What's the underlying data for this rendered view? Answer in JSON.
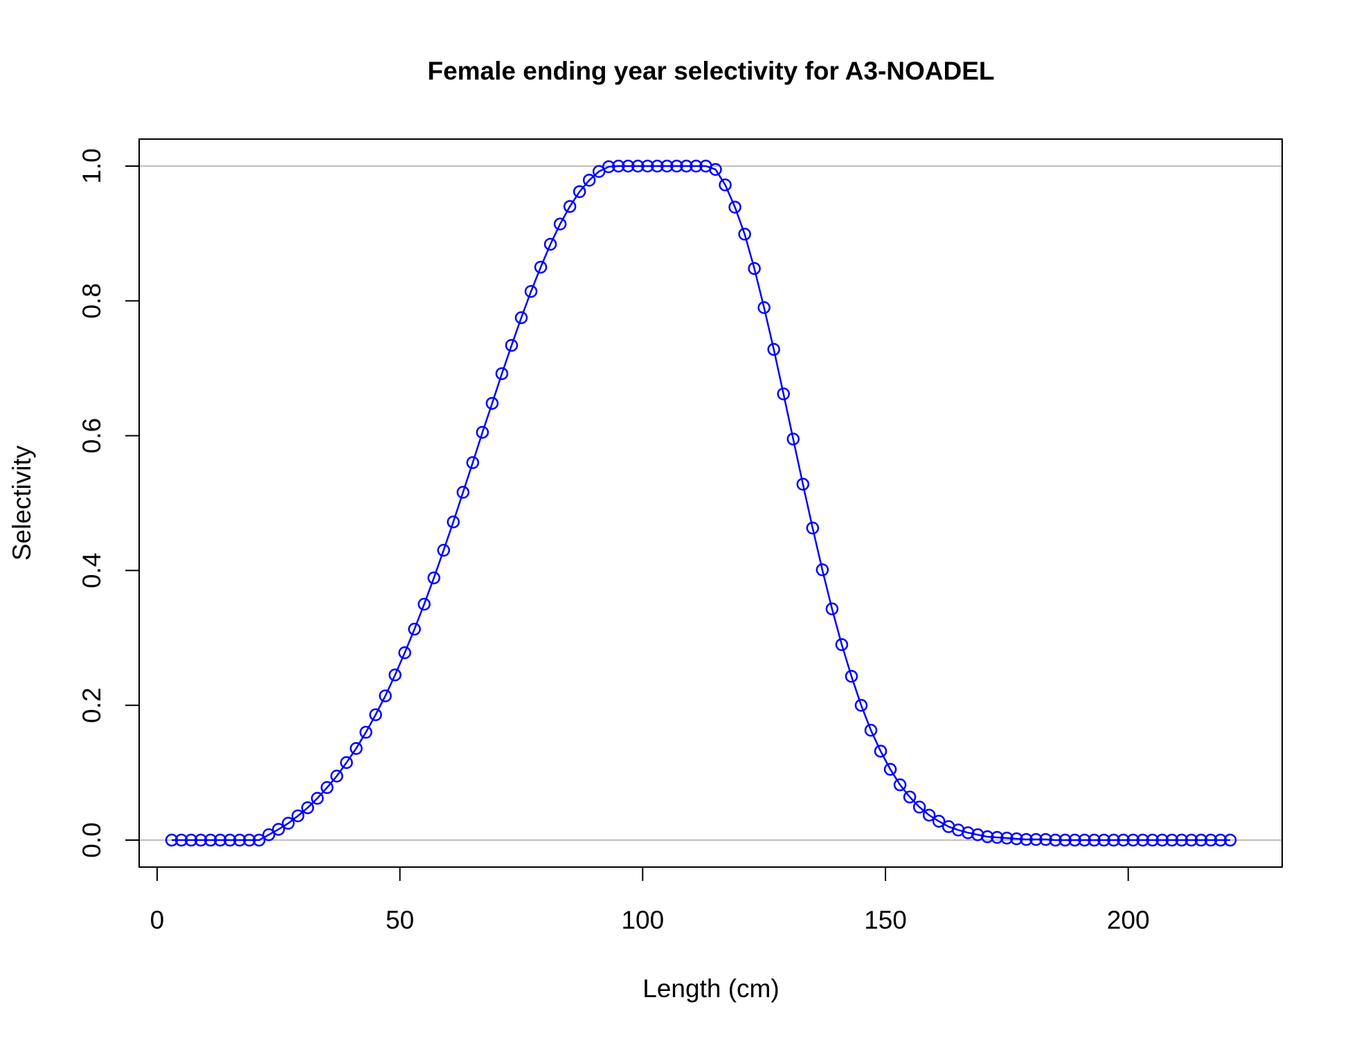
{
  "chart_data": {
    "type": "line",
    "title": "Female ending year selectivity for A3-NOADEL",
    "xlabel": "Length (cm)",
    "ylabel": "Selectivity",
    "xlim": [
      -3.7,
      231.7
    ],
    "ylim": [
      -0.04,
      1.04
    ],
    "x_ticks": [
      0,
      50,
      100,
      150,
      200
    ],
    "y_ticks": [
      0.0,
      0.2,
      0.4,
      0.6,
      0.8,
      1.0
    ],
    "x_tick_labels": [
      "0",
      "50",
      "100",
      "150",
      "200"
    ],
    "y_tick_labels": [
      "0.0",
      "0.2",
      "0.4",
      "0.6",
      "0.8",
      "1.0"
    ],
    "reference_lines_y": [
      0,
      1
    ],
    "reference_line_color": "#bebebe",
    "series_color": "#0000ff",
    "grid": false,
    "legend": "none",
    "series": [
      {
        "x": [
          3,
          5,
          7,
          9,
          11,
          13,
          15,
          17,
          19,
          21,
          23,
          25,
          27,
          29,
          31,
          33,
          35,
          37,
          39,
          41,
          43,
          45,
          47,
          49,
          51,
          53,
          55,
          57,
          59,
          61,
          63,
          65,
          67,
          69,
          71,
          73,
          75,
          77,
          79,
          81,
          83,
          85,
          87,
          89,
          91,
          93,
          95,
          97,
          99,
          101,
          103,
          105,
          107,
          109,
          111,
          113,
          115,
          117,
          119,
          121,
          123,
          125,
          127,
          129,
          131,
          133,
          135,
          137,
          139,
          141,
          143,
          145,
          147,
          149,
          151,
          153,
          155,
          157,
          159,
          161,
          163,
          165,
          167,
          169,
          171,
          173,
          175,
          177,
          179,
          181,
          183,
          185,
          187,
          189,
          191,
          193,
          195,
          197,
          199,
          201,
          203,
          205,
          207,
          209,
          211,
          213,
          215,
          217,
          219,
          221
        ],
        "y": [
          0,
          0,
          0,
          0,
          0,
          0,
          0,
          0,
          0,
          0,
          0.008,
          0.016,
          0.025,
          0.036,
          0.048,
          0.062,
          0.078,
          0.095,
          0.115,
          0.136,
          0.16,
          0.186,
          0.214,
          0.245,
          0.278,
          0.313,
          0.35,
          0.389,
          0.43,
          0.472,
          0.516,
          0.56,
          0.605,
          0.648,
          0.692,
          0.734,
          0.775,
          0.814,
          0.85,
          0.884,
          0.914,
          0.94,
          0.962,
          0.979,
          0.992,
          0.999,
          1,
          1,
          1,
          1,
          1,
          1,
          1,
          1,
          1,
          1,
          0.995,
          0.972,
          0.939,
          0.899,
          0.848,
          0.79,
          0.728,
          0.662,
          0.595,
          0.528,
          0.463,
          0.401,
          0.343,
          0.29,
          0.243,
          0.2,
          0.163,
          0.132,
          0.105,
          0.082,
          0.064,
          0.049,
          0.037,
          0.028,
          0.02,
          0.015,
          0.011,
          0.008,
          0.005,
          0.004,
          0.003,
          0.002,
          0.001,
          0.001,
          0.001,
          0,
          0,
          0,
          0,
          0,
          0,
          0,
          0,
          0,
          0,
          0,
          0,
          0,
          0,
          0,
          0,
          0,
          0,
          0
        ]
      }
    ]
  }
}
